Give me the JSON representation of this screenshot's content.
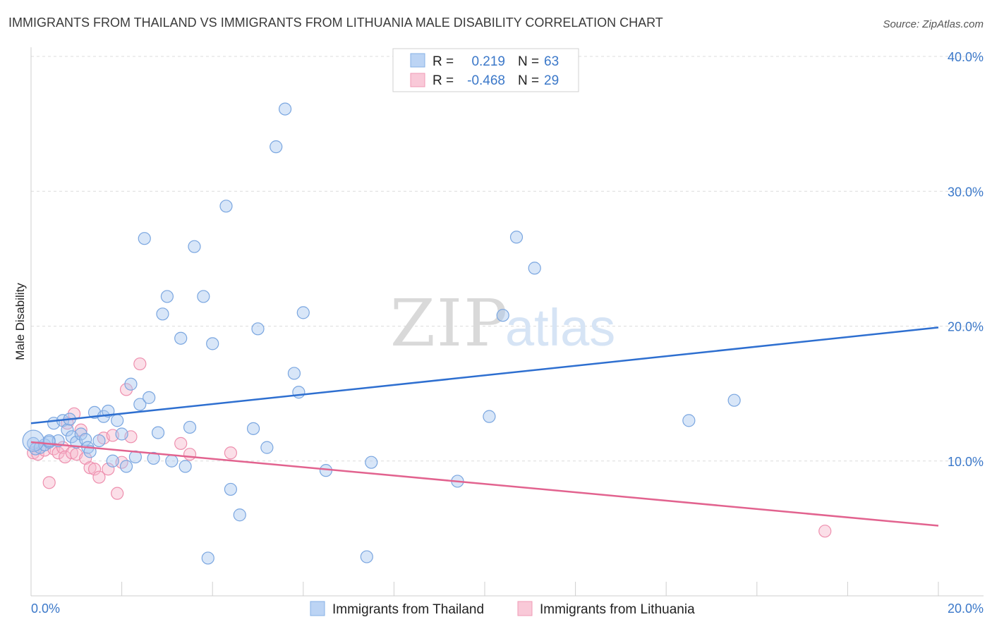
{
  "title": "IMMIGRANTS FROM THAILAND VS IMMIGRANTS FROM LITHUANIA MALE DISABILITY CORRELATION CHART",
  "source": "Source: ZipAtlas.com",
  "watermark": {
    "zip": "ZIP",
    "atlas": "atlas"
  },
  "legend": {
    "r_label": "R =",
    "n_label": "N =",
    "rows": [
      {
        "r": "0.219",
        "n": "63"
      },
      {
        "r": "-0.468",
        "n": "29"
      }
    ]
  },
  "colors": {
    "thailand_fill": "#a9c8f0",
    "thailand_stroke": "#7aa6e0",
    "thailand_line": "#2e6fd0",
    "lithuania_fill": "#f7b8cb",
    "lithuania_stroke": "#ee8fae",
    "lithuania_line": "#e2638f",
    "tick_text": "#3b78c9"
  },
  "chart_data": {
    "type": "scatter",
    "title": "IMMIGRANTS FROM THAILAND VS IMMIGRANTS FROM LITHUANIA MALE DISABILITY CORRELATION CHART",
    "xlabel": "",
    "ylabel": "Male Disability",
    "xlim": [
      0,
      20
    ],
    "ylim": [
      0,
      40
    ],
    "x_tick_labels": [
      "0.0%",
      "20.0%"
    ],
    "y_ticks": [
      {
        "value": 10,
        "label": "10.0%"
      },
      {
        "value": 20,
        "label": "20.0%"
      },
      {
        "value": 30,
        "label": "30.0%"
      },
      {
        "value": 40,
        "label": "40.0%"
      }
    ],
    "grid": true,
    "legend_position": "top-center",
    "series": [
      {
        "name": "Immigrants from Thailand",
        "r": 0.219,
        "n": 63,
        "trend": [
          [
            0,
            12.8
          ],
          [
            20,
            19.9
          ]
        ],
        "points": [
          [
            0.05,
            11.3
          ],
          [
            0.1,
            10.9
          ],
          [
            0.2,
            11.0
          ],
          [
            0.3,
            11.2
          ],
          [
            0.4,
            11.4
          ],
          [
            0.5,
            12.8
          ],
          [
            0.6,
            11.5
          ],
          [
            0.7,
            13.0
          ],
          [
            0.8,
            12.3
          ],
          [
            0.85,
            13.1
          ],
          [
            0.9,
            11.8
          ],
          [
            1.0,
            11.4
          ],
          [
            1.1,
            12.0
          ],
          [
            1.2,
            11.6
          ],
          [
            1.25,
            11.0
          ],
          [
            1.3,
            10.7
          ],
          [
            1.4,
            13.6
          ],
          [
            1.5,
            11.5
          ],
          [
            1.6,
            13.3
          ],
          [
            1.7,
            13.7
          ],
          [
            1.8,
            10.0
          ],
          [
            1.9,
            13.0
          ],
          [
            2.0,
            12.0
          ],
          [
            2.1,
            9.6
          ],
          [
            2.2,
            15.7
          ],
          [
            2.3,
            10.3
          ],
          [
            2.4,
            14.2
          ],
          [
            2.5,
            26.5
          ],
          [
            2.6,
            14.7
          ],
          [
            2.7,
            10.2
          ],
          [
            2.8,
            12.1
          ],
          [
            2.9,
            20.9
          ],
          [
            3.0,
            22.2
          ],
          [
            3.1,
            10.0
          ],
          [
            3.3,
            19.1
          ],
          [
            3.4,
            9.6
          ],
          [
            3.5,
            12.5
          ],
          [
            3.6,
            25.9
          ],
          [
            3.8,
            22.2
          ],
          [
            4.0,
            18.7
          ],
          [
            4.3,
            28.9
          ],
          [
            4.4,
            7.9
          ],
          [
            4.6,
            6.0
          ],
          [
            4.9,
            12.4
          ],
          [
            5.0,
            19.8
          ],
          [
            5.2,
            11.0
          ],
          [
            5.4,
            33.3
          ],
          [
            5.6,
            36.1
          ],
          [
            5.8,
            16.5
          ],
          [
            5.9,
            15.1
          ],
          [
            6.0,
            21.0
          ],
          [
            6.5,
            9.3
          ],
          [
            9.4,
            8.5
          ],
          [
            10.1,
            13.3
          ],
          [
            10.4,
            20.8
          ],
          [
            10.7,
            26.6
          ],
          [
            11.1,
            24.3
          ],
          [
            14.5,
            13.0
          ],
          [
            15.5,
            14.5
          ],
          [
            3.9,
            2.8
          ],
          [
            7.4,
            2.9
          ],
          [
            7.5,
            9.9
          ],
          [
            0.4,
            11.5
          ]
        ]
      },
      {
        "name": "Immigrants from Lithuania",
        "r": -0.468,
        "n": 29,
        "trend": [
          [
            0,
            11.4
          ],
          [
            20,
            5.2
          ]
        ],
        "points": [
          [
            0.05,
            10.6
          ],
          [
            0.15,
            10.5
          ],
          [
            0.3,
            10.8
          ],
          [
            0.4,
            8.4
          ],
          [
            0.5,
            10.9
          ],
          [
            0.6,
            10.6
          ],
          [
            0.7,
            11.0
          ],
          [
            0.75,
            10.3
          ],
          [
            0.8,
            12.8
          ],
          [
            0.9,
            10.6
          ],
          [
            1.0,
            10.5
          ],
          [
            1.1,
            12.3
          ],
          [
            1.2,
            10.2
          ],
          [
            1.3,
            9.5
          ],
          [
            1.4,
            9.4
          ],
          [
            1.5,
            8.8
          ],
          [
            1.6,
            11.7
          ],
          [
            1.7,
            9.4
          ],
          [
            1.8,
            11.9
          ],
          [
            1.9,
            7.6
          ],
          [
            2.0,
            9.9
          ],
          [
            2.1,
            15.3
          ],
          [
            2.2,
            11.8
          ],
          [
            2.4,
            17.2
          ],
          [
            3.3,
            11.3
          ],
          [
            3.5,
            10.5
          ],
          [
            4.4,
            10.6
          ],
          [
            17.5,
            4.8
          ],
          [
            0.95,
            13.5
          ]
        ]
      }
    ]
  },
  "bottom_legend": [
    "Immigrants from Thailand",
    "Immigrants from Lithuania"
  ]
}
